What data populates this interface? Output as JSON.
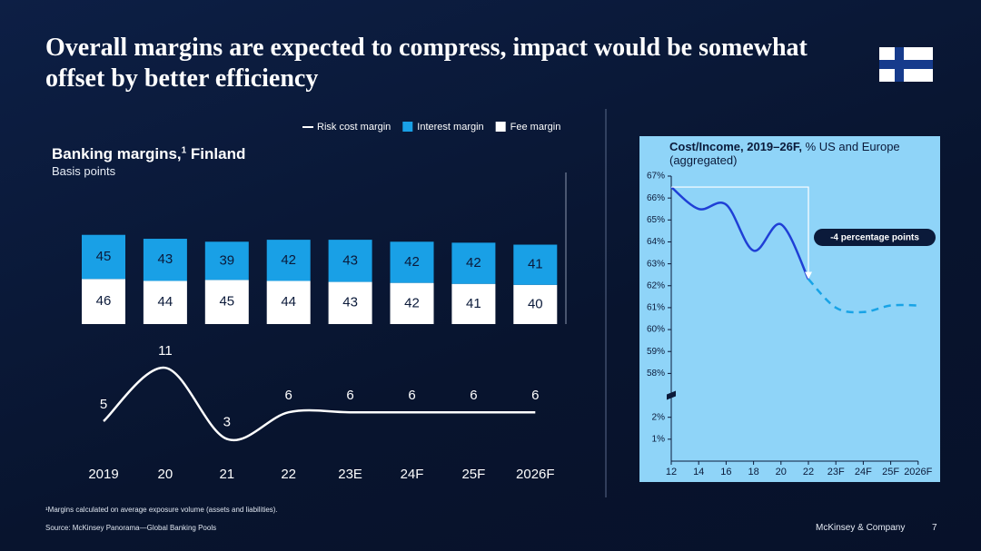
{
  "title": "Overall margins are expected to compress, impact would be somewhat offset by better efficiency",
  "footnote": "¹Margins calculated on average exposure volume (assets and liabilities).",
  "source": "Source: McKinsey Panorama—Global Banking Pools",
  "brand": "McKinsey & Company",
  "page_number": "7",
  "chart_data": [
    {
      "type": "stacked_bar_line",
      "title": [
        "Banking margins,",
        "1",
        " Finland"
      ],
      "subtitle": "Basis points",
      "categories": [
        "2019",
        "20",
        "21",
        "22",
        "23E",
        "24F",
        "25F",
        "2026F"
      ],
      "series": [
        {
          "name": "Risk cost margin",
          "kind": "line",
          "color": "#ffffff",
          "values": [
            5,
            11,
            3,
            6,
            6,
            6,
            6,
            6
          ]
        },
        {
          "name": "Interest margin",
          "kind": "bar",
          "color": "#19a0e6",
          "values": [
            45,
            43,
            39,
            42,
            43,
            42,
            42,
            41
          ]
        },
        {
          "name": "Fee margin",
          "kind": "bar",
          "color": "#ffffff",
          "values": [
            46,
            44,
            45,
            44,
            43,
            42,
            41,
            40
          ]
        }
      ],
      "legend": "top"
    },
    {
      "type": "line",
      "title": "Cost/Income, 2019–26F,",
      "subtitle": "% US and Europe (aggregated)",
      "categories": [
        "12",
        "14",
        "16",
        "18",
        "20",
        "22",
        "23F",
        "24F",
        "25F",
        "2026F"
      ],
      "values": [
        66.5,
        65.5,
        65.7,
        63.6,
        64.8,
        62.3,
        61.0,
        60.8,
        61.1,
        61.1
      ],
      "color": "#1f3fd6",
      "dashed_from": "22",
      "ylim": [
        0,
        67
      ],
      "axis_break": [
        3,
        57
      ],
      "yticks": [
        {
          "value": 67,
          "label": "67%"
        },
        {
          "value": 66,
          "label": "66%"
        },
        {
          "value": 65,
          "label": "65%"
        },
        {
          "value": 64,
          "label": "64%"
        },
        {
          "value": 63,
          "label": "63%"
        },
        {
          "value": 62,
          "label": "62%"
        },
        {
          "value": 61,
          "label": "61%"
        },
        {
          "value": 60,
          "label": "60%"
        },
        {
          "value": 59,
          "label": "59%"
        },
        {
          "value": 58,
          "label": "58%"
        },
        {
          "value": 2,
          "label": "2%"
        },
        {
          "value": 1,
          "label": "1%"
        }
      ],
      "annotation": "-4 percentage points"
    }
  ]
}
